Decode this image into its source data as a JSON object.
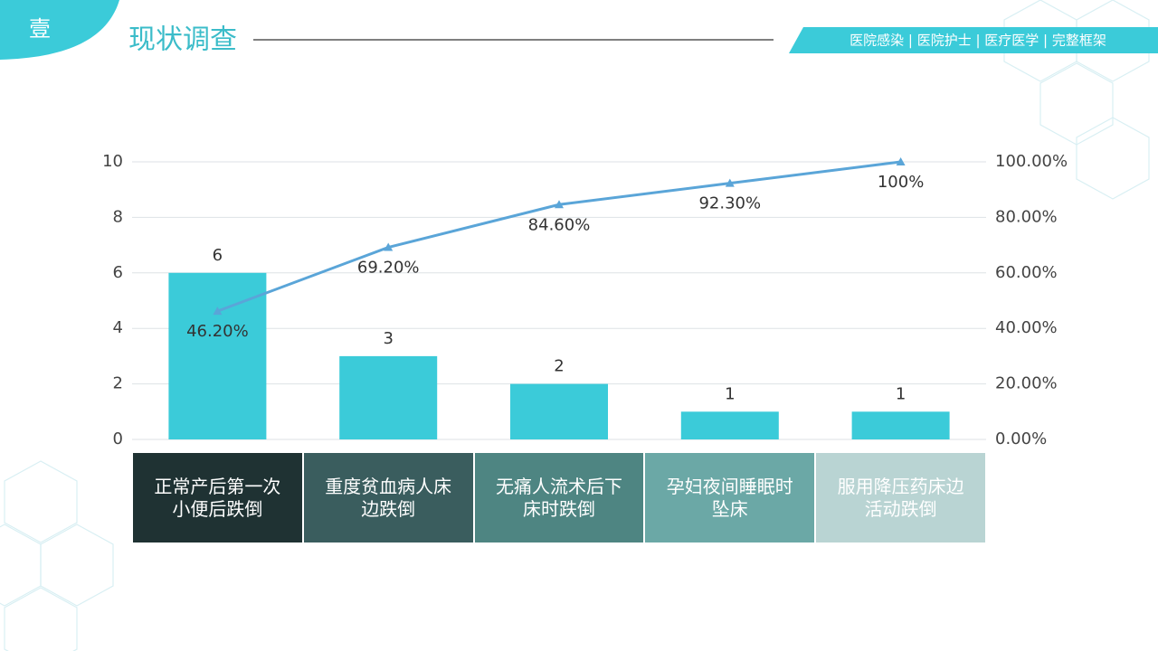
{
  "header": {
    "badge": "壹",
    "title": "现状调查",
    "tags": "医院感染 | 医院护士 | 医疗医学 | 完整框架"
  },
  "chart_data": {
    "type": "pareto",
    "categories": [
      "正常产后第一次小便后跌倒",
      "重度贫血病人床边跌倒",
      "无痛人流术后下床时跌倒",
      "孕妇夜间睡眠时坠床",
      "服用降压药床边活动跌倒"
    ],
    "series": [
      {
        "type": "bar",
        "color": "#3bcbd9",
        "values": [
          6,
          3,
          2,
          1,
          1
        ]
      },
      {
        "type": "line",
        "axis": "y2",
        "color": "#5aa5d8",
        "values": [
          46.2,
          69.2,
          84.6,
          92.3,
          100
        ],
        "value_labels": [
          "46.20%",
          "69.20%",
          "84.60%",
          "92.30%",
          "100%"
        ]
      }
    ],
    "ylim": [
      0,
      10
    ],
    "yticks": [
      0,
      2,
      4,
      6,
      8,
      10
    ],
    "y2lim": [
      0,
      100
    ],
    "y2ticks": [
      {
        "value": 0,
        "label": "0.00%"
      },
      {
        "value": 20,
        "label": "20.00%"
      },
      {
        "value": 40,
        "label": "40.00%"
      },
      {
        "value": 60,
        "label": "60.00%"
      },
      {
        "value": 80,
        "label": "80.00%"
      },
      {
        "value": 100,
        "label": "100.00%"
      }
    ],
    "grid": true
  }
}
